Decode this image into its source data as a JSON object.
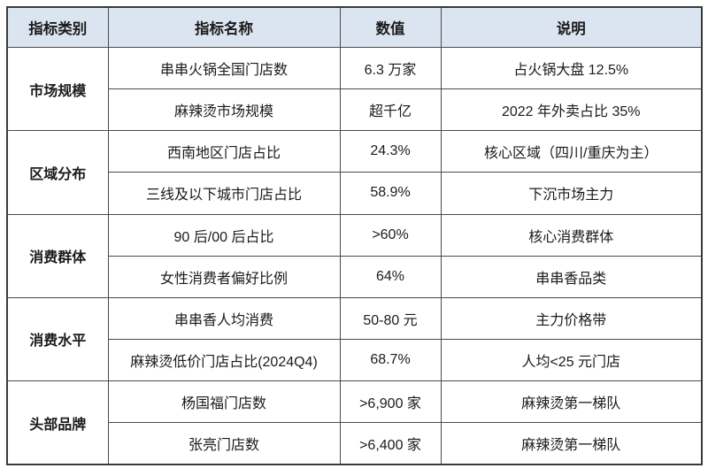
{
  "colors": {
    "header_bg": "#dbe5f1",
    "border_inner": "#4a4a4a",
    "border_outer": "#3a3a3a",
    "text": "#1b1b1b",
    "page_bg": "#ffffff"
  },
  "table": {
    "headers": [
      "指标类别",
      "指标名称",
      "数值",
      "说明"
    ],
    "groups": [
      {
        "category": "市场规模",
        "rows": [
          {
            "name": "串串火锅全国门店数",
            "value": "6.3 万家",
            "note": "占火锅大盘 12.5%"
          },
          {
            "name": "麻辣烫市场规模",
            "value": "超千亿",
            "note": "2022 年外卖占比 35%"
          }
        ]
      },
      {
        "category": "区域分布",
        "rows": [
          {
            "name": "西南地区门店占比",
            "value": "24.3%",
            "note": "核心区域（四川/重庆为主）"
          },
          {
            "name": "三线及以下城市门店占比",
            "value": "58.9%",
            "note": "下沉市场主力"
          }
        ]
      },
      {
        "category": "消费群体",
        "rows": [
          {
            "name": "90 后/00 后占比",
            "value": ">60%",
            "note": "核心消费群体"
          },
          {
            "name": "女性消费者偏好比例",
            "value": "64%",
            "note": "串串香品类"
          }
        ]
      },
      {
        "category": "消费水平",
        "rows": [
          {
            "name": "串串香人均消费",
            "value": "50-80 元",
            "note": "主力价格带"
          },
          {
            "name": "麻辣烫低价门店占比(2024Q4)",
            "value": "68.7%",
            "note": "人均<25 元门店"
          }
        ]
      },
      {
        "category": "头部品牌",
        "rows": [
          {
            "name": "杨国福门店数",
            "value": ">6,900 家",
            "note": "麻辣烫第一梯队"
          },
          {
            "name": "张亮门店数",
            "value": ">6,400 家",
            "note": "麻辣烫第一梯队"
          }
        ]
      }
    ]
  }
}
